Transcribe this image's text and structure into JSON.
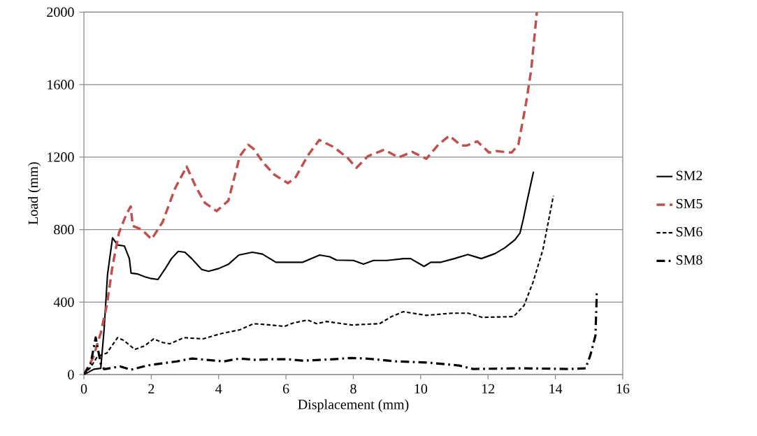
{
  "chart_data": {
    "type": "line",
    "xlabel": "Displacement (mm)",
    "ylabel": "Load (mm)",
    "xlim": [
      0,
      16
    ],
    "xticks": [
      0,
      2,
      4,
      6,
      8,
      10,
      12,
      14,
      16
    ],
    "ylim": [
      0,
      2000
    ],
    "yticks": [
      0,
      400,
      800,
      1200,
      1600,
      2000
    ],
    "grid": "y",
    "legend": "right",
    "marker": "none",
    "series": [
      {
        "name": "SM2",
        "color": "#000000",
        "line_style": "solid",
        "x": [
          0,
          0.3,
          0.5,
          0.6,
          0.7,
          0.85,
          1.0,
          1.2,
          1.35,
          1.4,
          1.6,
          1.8,
          2.0,
          2.2,
          2.4,
          2.6,
          2.8,
          3.0,
          3.2,
          3.5,
          3.7,
          4.0,
          4.3,
          4.6,
          5.0,
          5.3,
          5.7,
          6.0,
          6.5,
          7.0,
          7.3,
          7.5,
          8.0,
          8.3,
          8.6,
          9.0,
          9.5,
          9.7,
          10.1,
          10.3,
          10.6,
          11.0,
          11.4,
          11.8,
          12.2,
          12.5,
          12.8,
          12.95,
          13.05,
          13.15,
          13.35
        ],
        "values": [
          0,
          30,
          35,
          250,
          550,
          755,
          715,
          710,
          640,
          560,
          555,
          540,
          530,
          525,
          580,
          640,
          680,
          675,
          640,
          580,
          570,
          585,
          610,
          660,
          675,
          665,
          620,
          620,
          620,
          660,
          650,
          632,
          630,
          610,
          630,
          630,
          640,
          640,
          597,
          620,
          620,
          640,
          663,
          640,
          667,
          700,
          744,
          782,
          860,
          950,
          1120
        ]
      },
      {
        "name": "SM5",
        "color": "#c0504d",
        "line_style": "dashed",
        "x": [
          0,
          0.27,
          0.5,
          0.68,
          0.85,
          1.04,
          1.25,
          1.39,
          1.45,
          1.72,
          2.01,
          2.34,
          2.7,
          3.05,
          3.32,
          3.59,
          3.94,
          4.29,
          4.63,
          4.88,
          5.04,
          5.33,
          5.66,
          6.06,
          6.29,
          6.64,
          6.99,
          7.41,
          7.82,
          8.09,
          8.44,
          8.92,
          9.34,
          9.75,
          10.17,
          10.52,
          10.85,
          11.2,
          11.37,
          11.68,
          12.03,
          12.24,
          12.7,
          12.9,
          13.13,
          13.28,
          13.45
        ],
        "values": [
          0,
          92,
          230,
          382,
          600,
          782,
          880,
          928,
          820,
          800,
          747,
          843,
          1025,
          1148,
          1037,
          948,
          902,
          960,
          1206,
          1268,
          1245,
          1168,
          1102,
          1056,
          1090,
          1206,
          1295,
          1256,
          1198,
          1141,
          1206,
          1241,
          1198,
          1229,
          1191,
          1268,
          1318,
          1264,
          1264,
          1287,
          1225,
          1233,
          1225,
          1268,
          1499,
          1680,
          2000
        ]
      },
      {
        "name": "SM6",
        "color": "#000000",
        "line_style": "dotted",
        "x": [
          0,
          0.2,
          0.4,
          0.68,
          1.0,
          1.18,
          1.51,
          1.8,
          2.07,
          2.34,
          2.55,
          2.97,
          3.53,
          4.09,
          4.63,
          5.04,
          5.54,
          5.95,
          6.22,
          6.64,
          6.91,
          7.2,
          7.95,
          8.78,
          9.13,
          9.48,
          10.17,
          10.93,
          11.41,
          11.83,
          12.76,
          13.07,
          13.34,
          13.63,
          13.94
        ],
        "values": [
          0,
          40,
          100,
          119,
          204,
          189,
          139,
          158,
          197,
          177,
          170,
          204,
          197,
          227,
          247,
          281,
          274,
          266,
          285,
          301,
          281,
          293,
          274,
          281,
          320,
          347,
          327,
          339,
          339,
          316,
          320,
          382,
          512,
          690,
          987
        ]
      },
      {
        "name": "SM8",
        "color": "#000000",
        "line_style": "dashdot",
        "x": [
          0,
          0.2,
          0.35,
          0.5,
          0.6,
          1.08,
          1.39,
          1.87,
          2.32,
          2.76,
          3.22,
          3.67,
          4.15,
          4.63,
          5.12,
          5.6,
          6.02,
          6.49,
          6.99,
          7.41,
          7.93,
          8.36,
          9.27,
          10.23,
          11.14,
          11.56,
          13.0,
          14.38,
          14.9,
          15.04,
          15.19,
          15.23
        ],
        "values": [
          0,
          60,
          205,
          60,
          30,
          45,
          27,
          50,
          62,
          73,
          89,
          81,
          73,
          89,
          81,
          85,
          85,
          77,
          81,
          85,
          92,
          89,
          73,
          66,
          50,
          31,
          35,
          31,
          35,
          108,
          216,
          455
        ]
      }
    ]
  }
}
